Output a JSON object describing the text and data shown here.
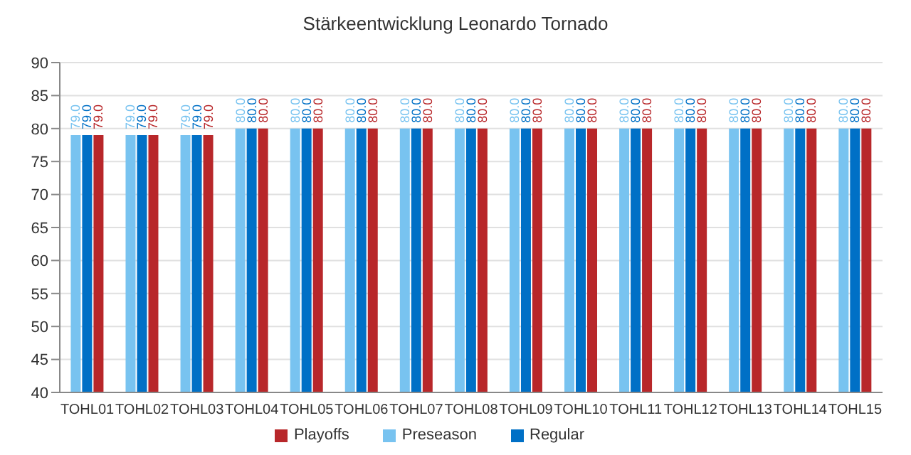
{
  "chart_data": {
    "type": "bar",
    "title": "Stärkeentwicklung Leonardo Tornado",
    "categories": [
      "TOHL01",
      "TOHL02",
      "TOHL03",
      "TOHL04",
      "TOHL05",
      "TOHL06",
      "TOHL07",
      "TOHL08",
      "TOHL09",
      "TOHL10",
      "TOHL11",
      "TOHL12",
      "TOHL13",
      "TOHL14",
      "TOHL15"
    ],
    "series": [
      {
        "name": "Preseason",
        "color": "#78c3f0",
        "values": [
          79,
          79,
          79,
          80,
          80,
          80,
          80,
          80,
          80,
          80,
          80,
          80,
          80,
          80,
          80
        ],
        "value_labels": [
          "79.0",
          "79.0",
          "79.0",
          "80.0",
          "80.0",
          "80.0",
          "80.0",
          "80.0",
          "80.0",
          "80.0",
          "80.0",
          "80.0",
          "80.0",
          "80.0",
          "80.0"
        ]
      },
      {
        "name": "Regular",
        "color": "#0070c6",
        "values": [
          79,
          79,
          79,
          80,
          80,
          80,
          80,
          80,
          80,
          80,
          80,
          80,
          80,
          80,
          80
        ],
        "value_labels": [
          "79.0",
          "79.0",
          "79.0",
          "80.0",
          "80.0",
          "80.0",
          "80.0",
          "80.0",
          "80.0",
          "80.0",
          "80.0",
          "80.0",
          "80.0",
          "80.0",
          "80.0"
        ]
      },
      {
        "name": "Playoffs",
        "color": "#b8272a",
        "values": [
          79,
          79,
          79,
          80,
          80,
          80,
          80,
          80,
          80,
          80,
          80,
          80,
          80,
          80,
          80
        ],
        "value_labels": [
          "79.0",
          "79.0",
          "79.0",
          "80.0",
          "80.0",
          "80.0",
          "80.0",
          "80.0",
          "80.0",
          "80.0",
          "80.0",
          "80.0",
          "80.0",
          "80.0",
          "80.0"
        ]
      }
    ],
    "ylim": [
      40,
      90
    ],
    "yticks": [
      40,
      45,
      50,
      55,
      60,
      65,
      70,
      75,
      80,
      85,
      90
    ],
    "grid": "y",
    "legend": "bottom"
  }
}
